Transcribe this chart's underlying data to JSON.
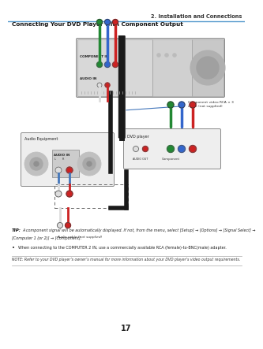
{
  "bg_color": "#ffffff",
  "header_line_color": "#5599cc",
  "header_text": "2. Installation and Connections",
  "section_title": "Connecting Your DVD Player with Component Output",
  "tip_text": "TIP: A component signal will be automatically displayed. If not, from the menu, select [Setup] → [Options] → [Signal Select] →\n[Computer 1 (or 2)] → [Component].",
  "bullet_text": "When connecting to the COMPUTER 2 IN, use a commercially available RCA (female)-to-BNC(male) adapter.",
  "note_text": "NOTE: Refer to your DVD player’s owner’s manual for more information about your DVD player’s video output requirements.",
  "page_number": "17",
  "label_component_in": "COMPONENT IN",
  "label_audio_in_proj": "AUDIO IN",
  "label_audio_equipment": "Audio Equipment",
  "label_dvd_player": "DVD player",
  "label_component_cable": "Component video RCA × 3\ncable (not supplied)",
  "label_audio_cable": "Audio cable (not supplied)",
  "label_audio_out": "AUDIO OUT",
  "label_component_eq": "Component",
  "proj_fill": "#e0e0e0",
  "proj_edge": "#888888",
  "device_fill": "#eeeeee",
  "device_edge": "#888888",
  "cable_black": "#1a1a1a",
  "cable_blue": "#4477bb",
  "connector_red": "#cc2222",
  "connector_white": "#dddddd",
  "connector_green": "#228833",
  "connector_blue_c": "#3366cc",
  "panel_fill": "#cccccc",
  "dark_panel": "#aaaaaa",
  "note_line_color": "#aaaaaa",
  "tip_bold_color": "#111111",
  "text_color": "#333333"
}
